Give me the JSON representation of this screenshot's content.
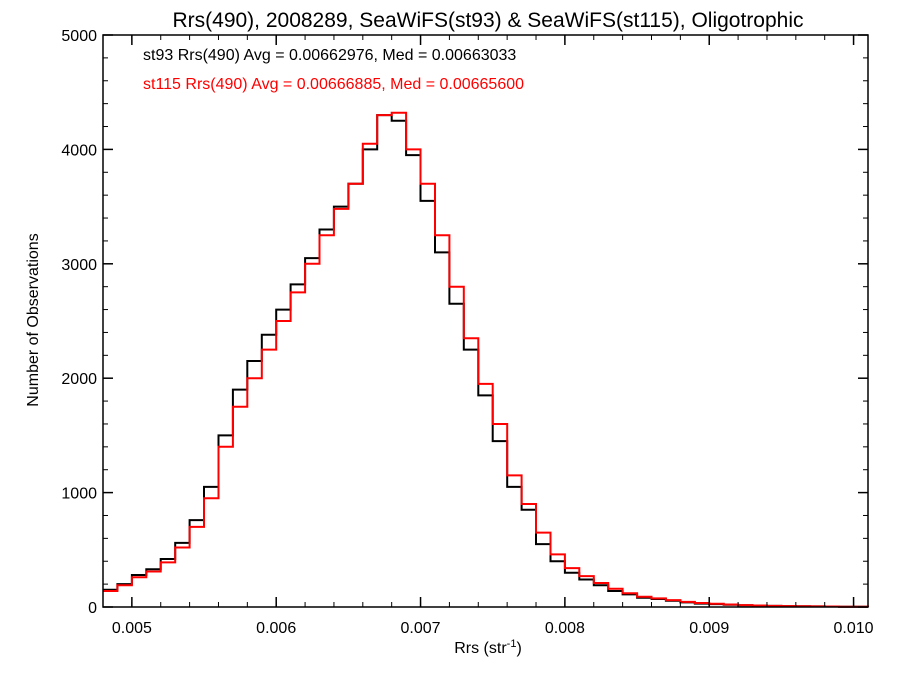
{
  "chart_data": {
    "type": "line",
    "title": "Rrs(490), 2008289, SeaWiFS(st93) & SeaWiFS(st115), Oligotrophic",
    "xlabel": "Rrs (str",
    "xlabel_sup": "-1",
    "xlabel_close": ")",
    "ylabel": "Number of Observations",
    "xlim": [
      0.0048,
      0.0101
    ],
    "ylim": [
      0,
      5000
    ],
    "x_ticks": [
      0.005,
      0.006,
      0.007,
      0.008,
      0.009,
      0.01
    ],
    "x_tick_labels": [
      "0.005",
      "0.006",
      "0.007",
      "0.008",
      "0.009",
      "0.010"
    ],
    "y_ticks": [
      0,
      1000,
      2000,
      3000,
      4000,
      5000
    ],
    "y_tick_labels": [
      "0",
      "1000",
      "2000",
      "3000",
      "4000",
      "5000"
    ],
    "step": true,
    "grid": false,
    "legend_position": "top-left",
    "series": [
      {
        "name": "st93 Rrs(490) Avg = 0.00662976, Med = 0.00663033",
        "color": "#000000",
        "x": [
          0.0048,
          0.0049,
          0.005,
          0.0051,
          0.0052,
          0.0053,
          0.0054,
          0.0055,
          0.0056,
          0.0057,
          0.0058,
          0.0059,
          0.006,
          0.0061,
          0.0062,
          0.0063,
          0.0064,
          0.0065,
          0.0066,
          0.0067,
          0.0068,
          0.0069,
          0.007,
          0.0071,
          0.0072,
          0.0073,
          0.0074,
          0.0075,
          0.0076,
          0.0077,
          0.0078,
          0.0079,
          0.008,
          0.0081,
          0.0082,
          0.0083,
          0.0084,
          0.0085,
          0.0086,
          0.0087,
          0.0088,
          0.0089,
          0.009,
          0.0091,
          0.0092,
          0.0093,
          0.0094,
          0.0095,
          0.0096,
          0.0097,
          0.0098,
          0.0099,
          0.01,
          0.0101
        ],
        "y": [
          150,
          200,
          280,
          330,
          420,
          560,
          760,
          1050,
          1500,
          1900,
          2150,
          2380,
          2600,
          2820,
          3050,
          3300,
          3500,
          3700,
          4000,
          4300,
          4250,
          3950,
          3550,
          3100,
          2650,
          2250,
          1850,
          1450,
          1050,
          850,
          550,
          400,
          300,
          240,
          190,
          140,
          110,
          80,
          70,
          55,
          40,
          30,
          25,
          20,
          15,
          12,
          10,
          8,
          6,
          5,
          4,
          3,
          2,
          1
        ]
      },
      {
        "name": "st115 Rrs(490) Avg = 0.00666885, Med = 0.00665600",
        "color": "#ff0000",
        "x": [
          0.0048,
          0.0049,
          0.005,
          0.0051,
          0.0052,
          0.0053,
          0.0054,
          0.0055,
          0.0056,
          0.0057,
          0.0058,
          0.0059,
          0.006,
          0.0061,
          0.0062,
          0.0063,
          0.0064,
          0.0065,
          0.0066,
          0.0067,
          0.0068,
          0.0069,
          0.007,
          0.0071,
          0.0072,
          0.0073,
          0.0074,
          0.0075,
          0.0076,
          0.0077,
          0.0078,
          0.0079,
          0.008,
          0.0081,
          0.0082,
          0.0083,
          0.0084,
          0.0085,
          0.0086,
          0.0087,
          0.0088,
          0.0089,
          0.009,
          0.0091,
          0.0092,
          0.0093,
          0.0094,
          0.0095,
          0.0096,
          0.0097,
          0.0098,
          0.0099,
          0.01,
          0.0101
        ],
        "y": [
          140,
          190,
          260,
          310,
          390,
          520,
          700,
          950,
          1400,
          1750,
          2000,
          2250,
          2500,
          2750,
          3000,
          3250,
          3480,
          3700,
          4050,
          4300,
          4320,
          4000,
          3700,
          3250,
          2800,
          2350,
          1950,
          1600,
          1150,
          900,
          650,
          460,
          340,
          270,
          210,
          160,
          120,
          90,
          75,
          60,
          45,
          35,
          28,
          22,
          17,
          13,
          10,
          8,
          6,
          5,
          4,
          3,
          2,
          1
        ]
      }
    ]
  }
}
